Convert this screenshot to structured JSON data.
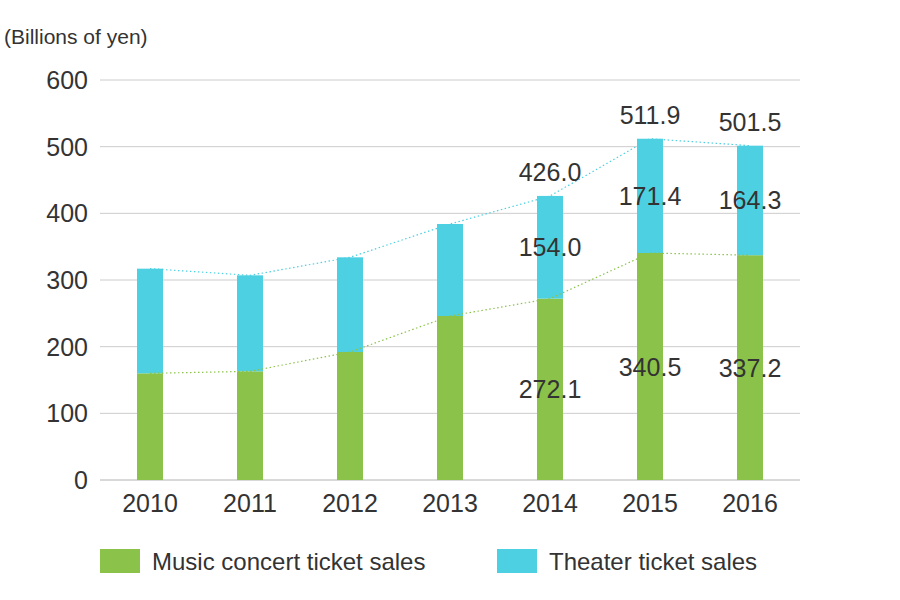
{
  "chart_data": {
    "type": "bar",
    "stacked": true,
    "y_label": "(Billions of yen)",
    "categories": [
      "2010",
      "2011",
      "2012",
      "2013",
      "2014",
      "2015",
      "2016"
    ],
    "series": [
      {
        "name": "Music concert ticket sales",
        "color": "#8bc34a",
        "line_style": "dotted",
        "values": [
          160,
          163,
          192,
          246,
          272.1,
          340.5,
          337.2
        ],
        "value_labels": [
          null,
          null,
          null,
          null,
          "272.1",
          "340.5",
          "337.2"
        ]
      },
      {
        "name": "Theater ticket sales",
        "color": "#4dd0e1",
        "values": [
          157,
          144,
          142,
          138,
          154.0,
          171.4,
          164.3
        ],
        "value_labels": [
          null,
          null,
          null,
          null,
          "154.0",
          "171.4",
          "164.3"
        ]
      }
    ],
    "totals": {
      "line_style": "dotted",
      "values": [
        317,
        307,
        334,
        384,
        426.0,
        511.9,
        501.5
      ],
      "value_labels": [
        null,
        null,
        null,
        null,
        "426.0",
        "511.9",
        "501.5"
      ]
    },
    "ylim": [
      0,
      600
    ],
    "yticks": [
      0,
      100,
      200,
      300,
      400,
      500,
      600
    ],
    "grid": true,
    "data_labels": true,
    "legend": "bottom"
  }
}
